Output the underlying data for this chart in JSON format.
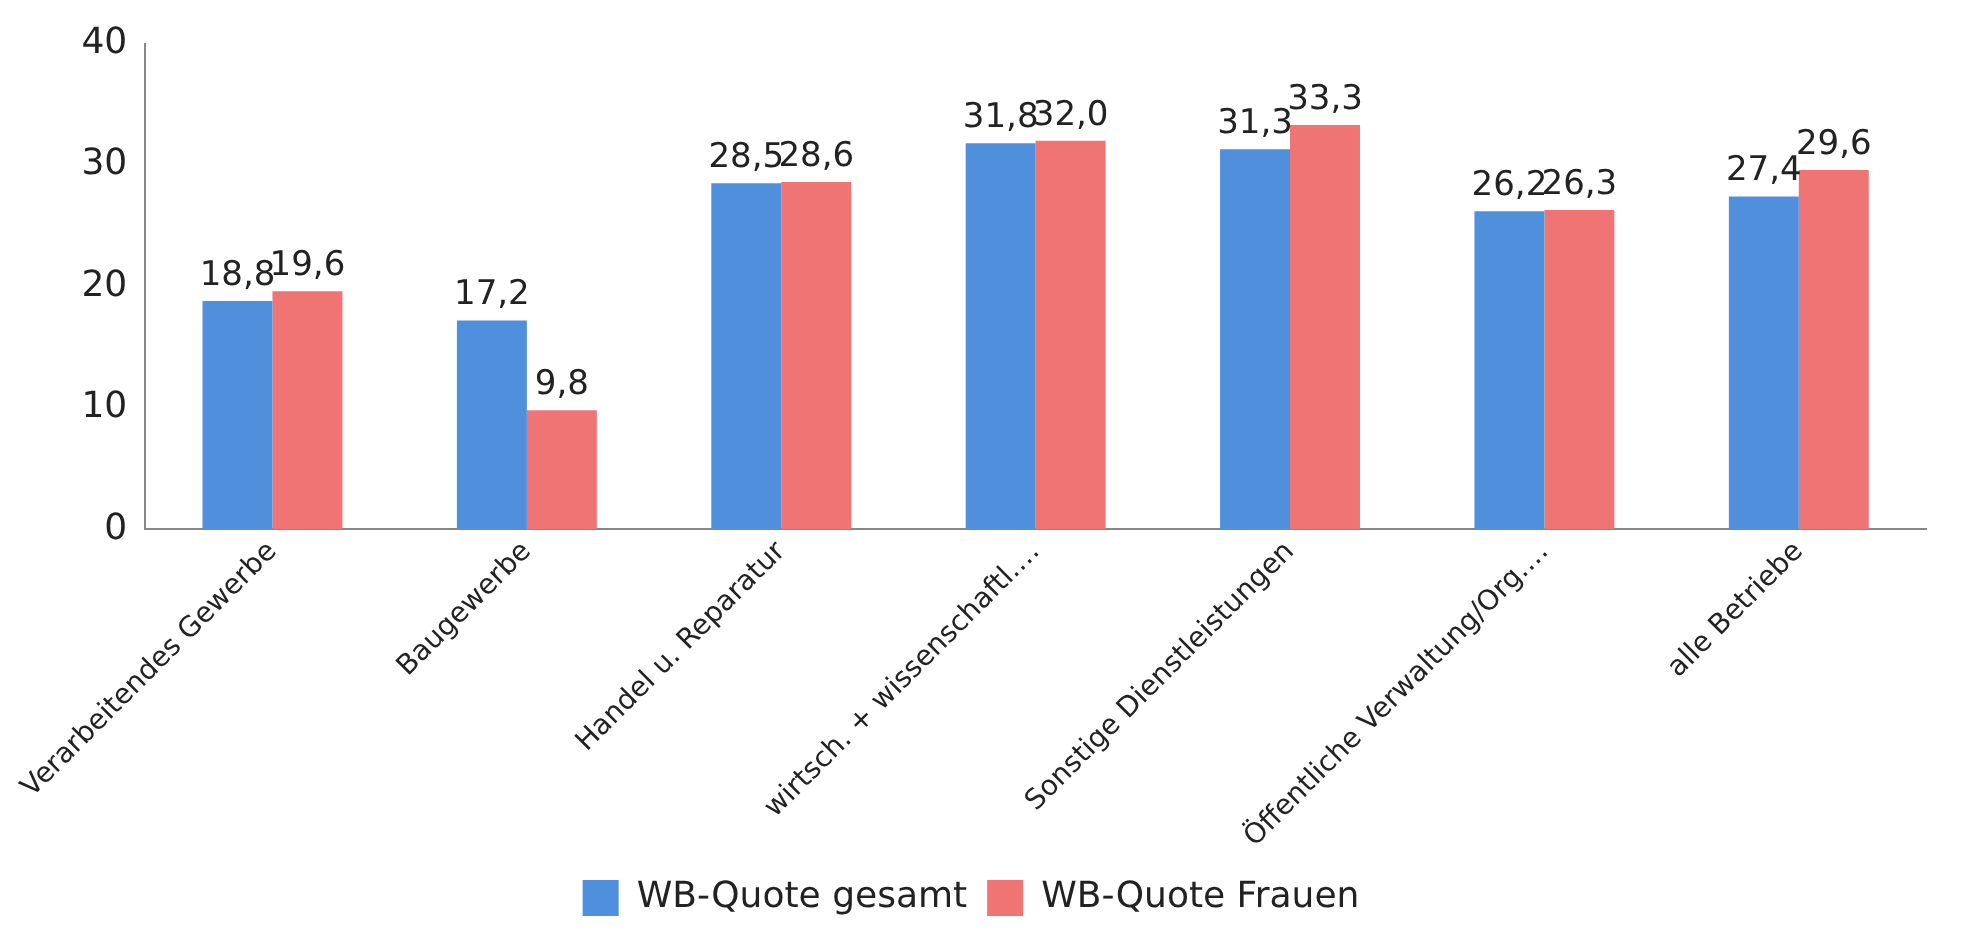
{
  "chart_data": {
    "type": "bar",
    "categories": [
      "Verarbeitendes Gewerbe",
      "Baugewerbe",
      "Handel u. Reparatur",
      "wirtsch. + wissenschaftl.…",
      "Sonstige Dienstleistungen",
      "Öffentliche Verwaltung/Org.…",
      "alle Betriebe"
    ],
    "series": [
      {
        "name": "WB-Quote gesamt",
        "color": "#4f8fdc",
        "values": [
          18.8,
          17.2,
          28.5,
          31.8,
          31.3,
          26.2,
          27.4
        ],
        "value_labels": [
          "18,8",
          "17,2",
          "28,5",
          "31,8",
          "31,3",
          "26,2",
          "27,4"
        ]
      },
      {
        "name": "WB-Quote Frauen",
        "color": "#f07474",
        "values": [
          19.6,
          9.8,
          28.6,
          32.0,
          33.3,
          26.3,
          29.6
        ],
        "value_labels": [
          "19,6",
          "9,8",
          "28,6",
          "32,0",
          "33,3",
          "26,3",
          "29,6"
        ]
      }
    ],
    "ylim": [
      0,
      40
    ],
    "yticks": [
      0,
      10,
      20,
      30,
      40
    ],
    "grid": false,
    "legend": "bottom"
  }
}
